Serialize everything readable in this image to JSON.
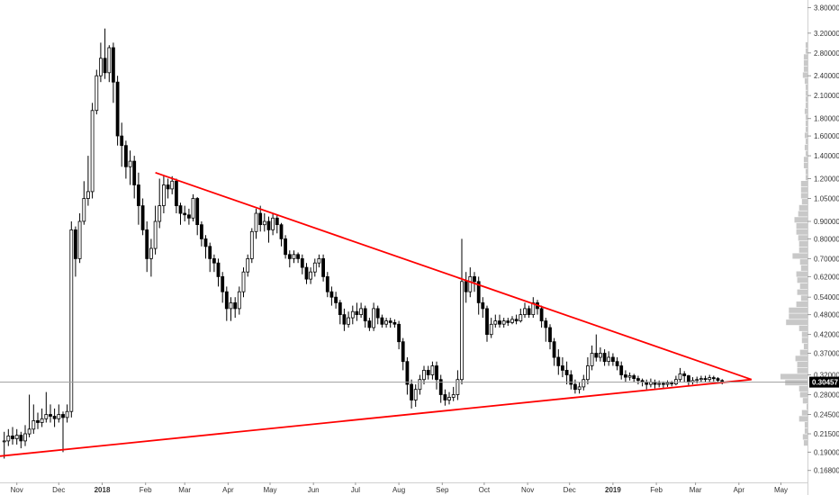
{
  "chart_data": {
    "type": "candlestick",
    "y_scale": "log",
    "ylim": [
      0.155,
      4.0
    ],
    "x_range": [
      "2017-10-20",
      "2019-05-20"
    ],
    "grid": false,
    "y_ticks": [
      "3.80000",
      "3.20000",
      "2.80000",
      "2.40000",
      "2.10000",
      "1.80000",
      "1.60000",
      "1.40000",
      "1.20000",
      "1.05000",
      "0.90000",
      "0.80000",
      "0.70000",
      "0.62000",
      "0.54000",
      "0.48000",
      "0.42000",
      "0.37000",
      "0.32000",
      "0.28000",
      "0.24500",
      "0.21500",
      "0.19000",
      "0.16800"
    ],
    "x_ticks": [
      {
        "date": "2017-11-01",
        "label": "Nov"
      },
      {
        "date": "2017-12-01",
        "label": "Dec"
      },
      {
        "date": "2018-01-01",
        "label": "2018"
      },
      {
        "date": "2018-02-01",
        "label": "Feb"
      },
      {
        "date": "2018-03-01",
        "label": "Mar"
      },
      {
        "date": "2018-04-01",
        "label": "Apr"
      },
      {
        "date": "2018-05-01",
        "label": "May"
      },
      {
        "date": "2018-06-01",
        "label": "Jun"
      },
      {
        "date": "2018-07-01",
        "label": "Jul"
      },
      {
        "date": "2018-08-01",
        "label": "Aug"
      },
      {
        "date": "2018-09-01",
        "label": "Sep"
      },
      {
        "date": "2018-10-01",
        "label": "Oct"
      },
      {
        "date": "2018-11-01",
        "label": "Nov"
      },
      {
        "date": "2018-12-01",
        "label": "Dec"
      },
      {
        "date": "2019-01-01",
        "label": "2019"
      },
      {
        "date": "2019-02-01",
        "label": "Feb"
      },
      {
        "date": "2019-03-01",
        "label": "Mar"
      },
      {
        "date": "2019-04-01",
        "label": "Apr"
      },
      {
        "date": "2019-05-01",
        "label": "May"
      }
    ],
    "last_price": 0.30457,
    "last_price_label": "0.30457",
    "colors": {
      "up": "#ffffff",
      "down": "#000000",
      "wick": "#000000",
      "trendline": "#ff0000",
      "price_line": "#9e9e9e",
      "badge": "#000000",
      "volume_profile": "#c8c8c8"
    },
    "trendlines": [
      {
        "name": "upper-resistance",
        "points": [
          [
            "2018-02-08",
            1.25
          ],
          [
            "2019-04-10",
            0.31
          ]
        ]
      },
      {
        "name": "lower-support",
        "points": [
          [
            "2017-10-20",
            0.185
          ],
          [
            "2019-04-10",
            0.31
          ]
        ]
      }
    ],
    "candles": [
      [
        "2017-10-23",
        0.205,
        0.205,
        0.218,
        0.182
      ],
      [
        "2017-10-26",
        0.205,
        0.212,
        0.222,
        0.198
      ],
      [
        "2017-10-29",
        0.212,
        0.208,
        0.225,
        0.2
      ],
      [
        "2017-11-01",
        0.208,
        0.213,
        0.222,
        0.2
      ],
      [
        "2017-11-04",
        0.213,
        0.205,
        0.218,
        0.195
      ],
      [
        "2017-11-07",
        0.205,
        0.215,
        0.228,
        0.198
      ],
      [
        "2017-11-10",
        0.215,
        0.222,
        0.28,
        0.21
      ],
      [
        "2017-11-13",
        0.222,
        0.235,
        0.262,
        0.215
      ],
      [
        "2017-11-16",
        0.235,
        0.232,
        0.248,
        0.222
      ],
      [
        "2017-11-19",
        0.232,
        0.238,
        0.255,
        0.225
      ],
      [
        "2017-11-22",
        0.238,
        0.245,
        0.285,
        0.232
      ],
      [
        "2017-11-25",
        0.245,
        0.242,
        0.262,
        0.232
      ],
      [
        "2017-11-28",
        0.242,
        0.238,
        0.255,
        0.225
      ],
      [
        "2017-12-01",
        0.238,
        0.245,
        0.262,
        0.232
      ],
      [
        "2017-12-04",
        0.245,
        0.24,
        0.25,
        0.19
      ],
      [
        "2017-12-07",
        0.24,
        0.25,
        0.262,
        0.232
      ],
      [
        "2017-12-10",
        0.25,
        0.85,
        0.9,
        0.24
      ],
      [
        "2017-12-13",
        0.85,
        0.7,
        0.87,
        0.62
      ],
      [
        "2017-12-16",
        0.7,
        0.9,
        0.95,
        0.68
      ],
      [
        "2017-12-19",
        0.9,
        1.05,
        1.18,
        0.88
      ],
      [
        "2017-12-22",
        1.05,
        1.1,
        1.4,
        1.0
      ],
      [
        "2017-12-25",
        1.1,
        1.9,
        2.0,
        1.05
      ],
      [
        "2017-12-28",
        1.9,
        2.4,
        2.5,
        1.85
      ],
      [
        "2017-12-31",
        2.4,
        2.7,
        3.0,
        2.3
      ],
      [
        "2018-01-03",
        2.7,
        2.45,
        3.3,
        2.35
      ],
      [
        "2018-01-06",
        2.45,
        2.9,
        2.95,
        2.3
      ],
      [
        "2018-01-09",
        2.9,
        2.3,
        3.0,
        2.0
      ],
      [
        "2018-01-12",
        2.3,
        1.6,
        2.4,
        1.5
      ],
      [
        "2018-01-15",
        1.6,
        1.5,
        1.75,
        1.3
      ],
      [
        "2018-01-18",
        1.5,
        1.3,
        1.55,
        1.2
      ],
      [
        "2018-01-21",
        1.3,
        1.35,
        1.45,
        1.15
      ],
      [
        "2018-01-24",
        1.35,
        1.15,
        1.4,
        1.05
      ],
      [
        "2018-01-27",
        1.15,
        1.0,
        1.25,
        0.88
      ],
      [
        "2018-01-30",
        1.0,
        0.85,
        1.05,
        0.82
      ],
      [
        "2018-02-02",
        0.85,
        0.7,
        0.9,
        0.64
      ],
      [
        "2018-02-05",
        0.7,
        0.75,
        0.8,
        0.62
      ],
      [
        "2018-02-08",
        0.75,
        0.9,
        1.0,
        0.72
      ],
      [
        "2018-02-11",
        0.9,
        1.0,
        1.2,
        0.86
      ],
      [
        "2018-02-14",
        1.0,
        1.15,
        1.23,
        0.95
      ],
      [
        "2018-02-17",
        1.15,
        1.12,
        1.2,
        1.05
      ],
      [
        "2018-02-20",
        1.12,
        1.18,
        1.22,
        1.08
      ],
      [
        "2018-02-23",
        1.18,
        1.0,
        1.2,
        0.95
      ],
      [
        "2018-02-26",
        1.0,
        0.95,
        1.02,
        0.88
      ],
      [
        "2018-03-01",
        0.95,
        0.94,
        1.0,
        0.9
      ],
      [
        "2018-03-04",
        0.94,
        0.92,
        0.98,
        0.88
      ],
      [
        "2018-03-07",
        0.92,
        1.05,
        1.08,
        0.9
      ],
      [
        "2018-03-10",
        1.05,
        0.88,
        1.06,
        0.82
      ],
      [
        "2018-03-13",
        0.88,
        0.8,
        0.9,
        0.76
      ],
      [
        "2018-03-16",
        0.8,
        0.76,
        0.82,
        0.7
      ],
      [
        "2018-03-19",
        0.76,
        0.7,
        0.78,
        0.64
      ],
      [
        "2018-03-22",
        0.7,
        0.68,
        0.72,
        0.64
      ],
      [
        "2018-03-25",
        0.68,
        0.62,
        0.7,
        0.58
      ],
      [
        "2018-03-28",
        0.62,
        0.56,
        0.64,
        0.52
      ],
      [
        "2018-03-31",
        0.56,
        0.5,
        0.58,
        0.46
      ],
      [
        "2018-04-03",
        0.5,
        0.52,
        0.54,
        0.46
      ],
      [
        "2018-04-06",
        0.52,
        0.5,
        0.54,
        0.47
      ],
      [
        "2018-04-09",
        0.5,
        0.56,
        0.58,
        0.48
      ],
      [
        "2018-04-12",
        0.56,
        0.64,
        0.66,
        0.54
      ],
      [
        "2018-04-15",
        0.64,
        0.7,
        0.72,
        0.62
      ],
      [
        "2018-04-18",
        0.7,
        0.84,
        0.86,
        0.68
      ],
      [
        "2018-04-21",
        0.84,
        0.95,
        0.98,
        0.8
      ],
      [
        "2018-04-24",
        0.95,
        0.88,
        1.0,
        0.84
      ],
      [
        "2018-04-27",
        0.88,
        0.9,
        0.95,
        0.84
      ],
      [
        "2018-04-30",
        0.9,
        0.85,
        0.93,
        0.78
      ],
      [
        "2018-05-03",
        0.85,
        0.92,
        0.95,
        0.82
      ],
      [
        "2018-05-06",
        0.92,
        0.88,
        0.94,
        0.83
      ],
      [
        "2018-05-09",
        0.88,
        0.8,
        0.89,
        0.76
      ],
      [
        "2018-05-12",
        0.8,
        0.72,
        0.82,
        0.7
      ],
      [
        "2018-05-15",
        0.72,
        0.7,
        0.74,
        0.66
      ],
      [
        "2018-05-18",
        0.7,
        0.72,
        0.74,
        0.68
      ],
      [
        "2018-05-21",
        0.72,
        0.7,
        0.73,
        0.68
      ],
      [
        "2018-05-24",
        0.7,
        0.66,
        0.72,
        0.63
      ],
      [
        "2018-05-27",
        0.66,
        0.61,
        0.68,
        0.59
      ],
      [
        "2018-05-30",
        0.61,
        0.64,
        0.66,
        0.59
      ],
      [
        "2018-06-02",
        0.64,
        0.68,
        0.7,
        0.62
      ],
      [
        "2018-06-05",
        0.68,
        0.7,
        0.72,
        0.66
      ],
      [
        "2018-06-08",
        0.7,
        0.62,
        0.72,
        0.6
      ],
      [
        "2018-06-11",
        0.62,
        0.56,
        0.64,
        0.54
      ],
      [
        "2018-06-14",
        0.56,
        0.54,
        0.58,
        0.51
      ],
      [
        "2018-06-17",
        0.54,
        0.52,
        0.56,
        0.5
      ],
      [
        "2018-06-20",
        0.52,
        0.48,
        0.53,
        0.45
      ],
      [
        "2018-06-23",
        0.48,
        0.45,
        0.5,
        0.43
      ],
      [
        "2018-06-26",
        0.45,
        0.47,
        0.49,
        0.44
      ],
      [
        "2018-06-29",
        0.47,
        0.49,
        0.51,
        0.45
      ],
      [
        "2018-07-02",
        0.49,
        0.48,
        0.52,
        0.46
      ],
      [
        "2018-07-05",
        0.48,
        0.5,
        0.52,
        0.47
      ],
      [
        "2018-07-08",
        0.5,
        0.46,
        0.51,
        0.44
      ],
      [
        "2018-07-11",
        0.46,
        0.44,
        0.47,
        0.43
      ],
      [
        "2018-07-14",
        0.44,
        0.5,
        0.52,
        0.43
      ],
      [
        "2018-07-17",
        0.5,
        0.47,
        0.51,
        0.45
      ],
      [
        "2018-07-20",
        0.47,
        0.45,
        0.48,
        0.44
      ],
      [
        "2018-07-23",
        0.45,
        0.46,
        0.47,
        0.44
      ],
      [
        "2018-07-26",
        0.46,
        0.455,
        0.47,
        0.44
      ],
      [
        "2018-07-29",
        0.455,
        0.45,
        0.465,
        0.44
      ],
      [
        "2018-08-01",
        0.45,
        0.4,
        0.46,
        0.38
      ],
      [
        "2018-08-04",
        0.4,
        0.35,
        0.41,
        0.33
      ],
      [
        "2018-08-07",
        0.35,
        0.3,
        0.36,
        0.28
      ],
      [
        "2018-08-10",
        0.3,
        0.27,
        0.31,
        0.255
      ],
      [
        "2018-08-13",
        0.27,
        0.29,
        0.3,
        0.258
      ],
      [
        "2018-08-16",
        0.29,
        0.31,
        0.32,
        0.28
      ],
      [
        "2018-08-19",
        0.31,
        0.33,
        0.34,
        0.3
      ],
      [
        "2018-08-22",
        0.33,
        0.32,
        0.34,
        0.31
      ],
      [
        "2018-08-25",
        0.32,
        0.34,
        0.35,
        0.31
      ],
      [
        "2018-08-28",
        0.34,
        0.31,
        0.35,
        0.29
      ],
      [
        "2018-08-31",
        0.31,
        0.28,
        0.32,
        0.265
      ],
      [
        "2018-09-03",
        0.28,
        0.27,
        0.29,
        0.26
      ],
      [
        "2018-09-06",
        0.27,
        0.275,
        0.285,
        0.262
      ],
      [
        "2018-09-09",
        0.275,
        0.28,
        0.295,
        0.268
      ],
      [
        "2018-09-12",
        0.28,
        0.31,
        0.33,
        0.27
      ],
      [
        "2018-09-15",
        0.31,
        0.6,
        0.8,
        0.3
      ],
      [
        "2018-09-18",
        0.6,
        0.56,
        0.64,
        0.52
      ],
      [
        "2018-09-21",
        0.56,
        0.62,
        0.66,
        0.54
      ],
      [
        "2018-09-24",
        0.62,
        0.6,
        0.64,
        0.56
      ],
      [
        "2018-09-27",
        0.6,
        0.52,
        0.62,
        0.48
      ],
      [
        "2018-09-30",
        0.52,
        0.5,
        0.54,
        0.47
      ],
      [
        "2018-10-03",
        0.5,
        0.42,
        0.51,
        0.4
      ],
      [
        "2018-10-06",
        0.42,
        0.45,
        0.47,
        0.41
      ],
      [
        "2018-10-09",
        0.45,
        0.46,
        0.48,
        0.44
      ],
      [
        "2018-10-12",
        0.46,
        0.45,
        0.48,
        0.44
      ],
      [
        "2018-10-15",
        0.45,
        0.46,
        0.47,
        0.44
      ],
      [
        "2018-10-18",
        0.46,
        0.455,
        0.47,
        0.445
      ],
      [
        "2018-10-21",
        0.455,
        0.465,
        0.475,
        0.45
      ],
      [
        "2018-10-24",
        0.465,
        0.46,
        0.48,
        0.45
      ],
      [
        "2018-10-27",
        0.46,
        0.48,
        0.5,
        0.455
      ],
      [
        "2018-10-30",
        0.48,
        0.5,
        0.52,
        0.47
      ],
      [
        "2018-11-02",
        0.5,
        0.48,
        0.51,
        0.47
      ],
      [
        "2018-11-05",
        0.48,
        0.52,
        0.54,
        0.47
      ],
      [
        "2018-11-08",
        0.52,
        0.5,
        0.53,
        0.48
      ],
      [
        "2018-11-11",
        0.5,
        0.46,
        0.51,
        0.44
      ],
      [
        "2018-11-14",
        0.46,
        0.44,
        0.47,
        0.4
      ],
      [
        "2018-11-17",
        0.44,
        0.4,
        0.45,
        0.38
      ],
      [
        "2018-11-20",
        0.4,
        0.36,
        0.41,
        0.34
      ],
      [
        "2018-11-23",
        0.36,
        0.34,
        0.38,
        0.32
      ],
      [
        "2018-11-26",
        0.34,
        0.33,
        0.36,
        0.315
      ],
      [
        "2018-11-29",
        0.33,
        0.32,
        0.35,
        0.3
      ],
      [
        "2018-12-02",
        0.32,
        0.3,
        0.33,
        0.29
      ],
      [
        "2018-12-05",
        0.3,
        0.29,
        0.31,
        0.282
      ],
      [
        "2018-12-08",
        0.29,
        0.295,
        0.305,
        0.282
      ],
      [
        "2018-12-11",
        0.295,
        0.31,
        0.32,
        0.288
      ],
      [
        "2018-12-14",
        0.31,
        0.34,
        0.36,
        0.3
      ],
      [
        "2018-12-17",
        0.34,
        0.37,
        0.39,
        0.33
      ],
      [
        "2018-12-20",
        0.37,
        0.36,
        0.42,
        0.35
      ],
      [
        "2018-12-23",
        0.36,
        0.37,
        0.385,
        0.35
      ],
      [
        "2018-12-26",
        0.37,
        0.35,
        0.38,
        0.34
      ],
      [
        "2018-12-29",
        0.35,
        0.36,
        0.375,
        0.34
      ],
      [
        "2019-01-01",
        0.36,
        0.35,
        0.37,
        0.34
      ],
      [
        "2019-01-04",
        0.35,
        0.34,
        0.36,
        0.33
      ],
      [
        "2019-01-07",
        0.34,
        0.32,
        0.35,
        0.31
      ],
      [
        "2019-01-10",
        0.32,
        0.315,
        0.33,
        0.305
      ],
      [
        "2019-01-13",
        0.315,
        0.318,
        0.325,
        0.308
      ],
      [
        "2019-01-16",
        0.318,
        0.312,
        0.322,
        0.305
      ],
      [
        "2019-01-19",
        0.312,
        0.308,
        0.318,
        0.3
      ],
      [
        "2019-01-22",
        0.308,
        0.305,
        0.312,
        0.296
      ],
      [
        "2019-01-25",
        0.305,
        0.3,
        0.31,
        0.29
      ],
      [
        "2019-01-28",
        0.3,
        0.305,
        0.312,
        0.294
      ],
      [
        "2019-01-31",
        0.305,
        0.3,
        0.31,
        0.292
      ],
      [
        "2019-02-03",
        0.3,
        0.302,
        0.308,
        0.294
      ],
      [
        "2019-02-06",
        0.302,
        0.3,
        0.306,
        0.292
      ],
      [
        "2019-02-09",
        0.3,
        0.303,
        0.308,
        0.295
      ],
      [
        "2019-02-12",
        0.303,
        0.301,
        0.307,
        0.296
      ],
      [
        "2019-02-15",
        0.301,
        0.31,
        0.318,
        0.298
      ],
      [
        "2019-02-18",
        0.31,
        0.322,
        0.335,
        0.305
      ],
      [
        "2019-02-21",
        0.322,
        0.318,
        0.328,
        0.305
      ],
      [
        "2019-02-24",
        0.318,
        0.305,
        0.32,
        0.298
      ],
      [
        "2019-02-27",
        0.305,
        0.308,
        0.315,
        0.3
      ],
      [
        "2019-03-02",
        0.308,
        0.31,
        0.316,
        0.302
      ],
      [
        "2019-03-05",
        0.31,
        0.312,
        0.318,
        0.304
      ],
      [
        "2019-03-08",
        0.312,
        0.31,
        0.318,
        0.304
      ],
      [
        "2019-03-11",
        0.31,
        0.314,
        0.32,
        0.305
      ],
      [
        "2019-03-14",
        0.314,
        0.312,
        0.318,
        0.306
      ],
      [
        "2019-03-17",
        0.312,
        0.308,
        0.315,
        0.302
      ],
      [
        "2019-03-20",
        0.308,
        0.30457,
        0.311,
        0.3
      ]
    ]
  }
}
